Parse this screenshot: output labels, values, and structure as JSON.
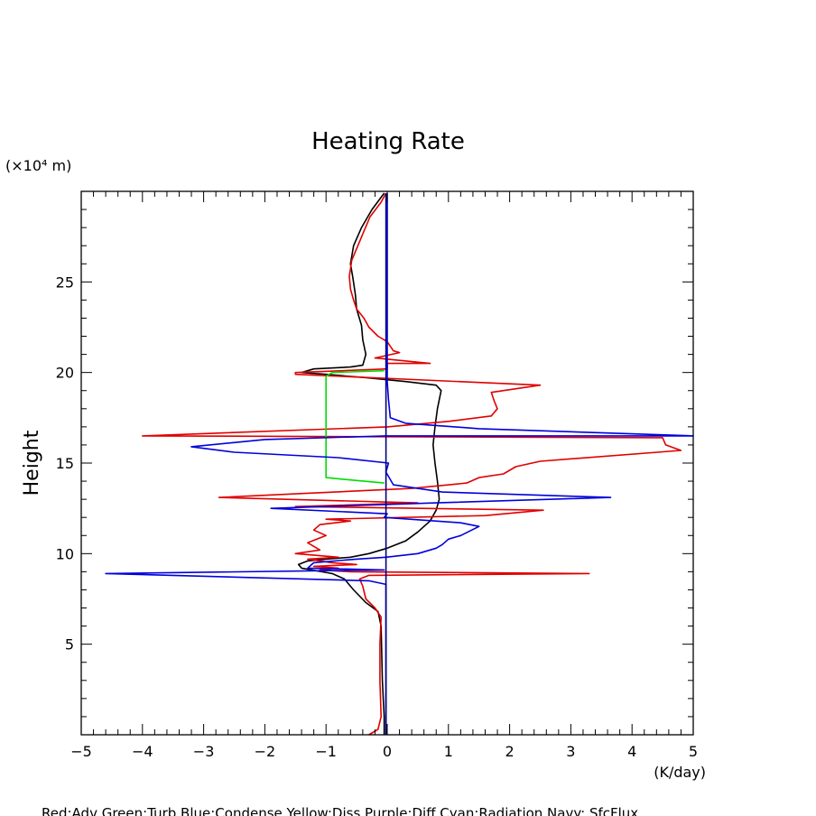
{
  "chart_data": {
    "type": "line",
    "title": "Heating Rate",
    "ylabel": "Height",
    "yunit": "(×10⁴ m)",
    "xunit": "(K/day)",
    "xlim": [
      -5,
      5
    ],
    "ylim": [
      0,
      30
    ],
    "xticks": [
      -5,
      -4,
      -3,
      -2,
      -1,
      0,
      1,
      2,
      3,
      4,
      5
    ],
    "yticks": [
      5,
      10,
      15,
      20,
      25
    ],
    "grid": false,
    "legend_text": "Red:Adv  Green:Turb  Blue:Condense  Yellow:Diss  Purple:Diff  Cyan:Radiation  Navy: SfcFlux",
    "series": [
      {
        "color": "#000000",
        "points": [
          [
            -0.05,
            0
          ],
          [
            -0.05,
            0.5
          ],
          [
            -0.05,
            1
          ],
          [
            -0.08,
            3
          ],
          [
            -0.1,
            6
          ],
          [
            -0.15,
            6.8
          ],
          [
            -0.35,
            7.3
          ],
          [
            -0.55,
            8
          ],
          [
            -0.7,
            8.6
          ],
          [
            -0.9,
            8.9
          ],
          [
            -1.4,
            9.2
          ],
          [
            -1.45,
            9.4
          ],
          [
            -1.3,
            9.6
          ],
          [
            -1.0,
            9.7
          ],
          [
            -0.6,
            9.8
          ],
          [
            -0.3,
            10.0
          ],
          [
            0.0,
            10.3
          ],
          [
            0.3,
            10.7
          ],
          [
            0.5,
            11.2
          ],
          [
            0.7,
            11.8
          ],
          [
            0.8,
            12.4
          ],
          [
            0.85,
            13.0
          ],
          [
            0.82,
            14.0
          ],
          [
            0.78,
            15.0
          ],
          [
            0.75,
            16.0
          ],
          [
            0.78,
            17.0
          ],
          [
            0.82,
            18.0
          ],
          [
            0.88,
            19.0
          ],
          [
            0.8,
            19.3
          ],
          [
            0.3,
            19.5
          ],
          [
            -0.3,
            19.7
          ],
          [
            -1.0,
            19.9
          ],
          [
            -1.4,
            20.0
          ],
          [
            -1.2,
            20.2
          ],
          [
            -0.6,
            20.3
          ],
          [
            -0.4,
            20.4
          ],
          [
            -0.35,
            21.0
          ],
          [
            -0.4,
            21.8
          ],
          [
            -0.42,
            22.6
          ],
          [
            -0.5,
            23.5
          ],
          [
            -0.52,
            24.3
          ],
          [
            -0.56,
            25.2
          ],
          [
            -0.6,
            26.0
          ],
          [
            -0.55,
            27.0
          ],
          [
            -0.42,
            28.0
          ],
          [
            -0.25,
            29.0
          ],
          [
            -0.05,
            29.9
          ]
        ]
      },
      {
        "color": "#e00000",
        "points": [
          [
            -0.3,
            0
          ],
          [
            -0.15,
            0.3
          ],
          [
            -0.1,
            1
          ],
          [
            -0.12,
            3
          ],
          [
            -0.12,
            5
          ],
          [
            -0.1,
            6.5
          ],
          [
            -0.2,
            7.0
          ],
          [
            -0.35,
            7.5
          ],
          [
            -0.4,
            8.2
          ],
          [
            -0.45,
            8.6
          ],
          [
            -0.3,
            8.8
          ],
          [
            3.3,
            8.9
          ],
          [
            -0.6,
            9.0
          ],
          [
            -1.1,
            9.1
          ],
          [
            -0.8,
            9.2
          ],
          [
            -1.2,
            9.3
          ],
          [
            -0.5,
            9.4
          ],
          [
            -0.9,
            9.5
          ],
          [
            -1.3,
            9.7
          ],
          [
            -0.8,
            9.8
          ],
          [
            -1.5,
            10.0
          ],
          [
            -1.1,
            10.2
          ],
          [
            -1.3,
            10.6
          ],
          [
            -1.0,
            11.0
          ],
          [
            -1.2,
            11.3
          ],
          [
            -1.1,
            11.6
          ],
          [
            -0.6,
            11.8
          ],
          [
            -1.0,
            11.9
          ],
          [
            1.6,
            12.1
          ],
          [
            2.55,
            12.4
          ],
          [
            -1.5,
            12.6
          ],
          [
            0.5,
            12.8
          ],
          [
            -2.75,
            13.1
          ],
          [
            -1.5,
            13.3
          ],
          [
            0.4,
            13.6
          ],
          [
            1.3,
            13.9
          ],
          [
            1.5,
            14.2
          ],
          [
            1.9,
            14.4
          ],
          [
            2.1,
            14.8
          ],
          [
            2.5,
            15.1
          ],
          [
            4.8,
            15.7
          ],
          [
            4.55,
            16.0
          ],
          [
            4.5,
            16.4
          ],
          [
            -4.0,
            16.5
          ],
          [
            0.0,
            17.0
          ],
          [
            1.0,
            17.3
          ],
          [
            1.7,
            17.6
          ],
          [
            1.8,
            18.0
          ],
          [
            1.75,
            18.4
          ],
          [
            1.7,
            18.9
          ],
          [
            2.5,
            19.3
          ],
          [
            -1.5,
            19.9
          ],
          [
            -1.5,
            20.0
          ],
          [
            0.0,
            20.2
          ],
          [
            0.0,
            20.5
          ],
          [
            0.7,
            20.5
          ],
          [
            -0.2,
            20.8
          ],
          [
            0.2,
            21.1
          ],
          [
            0.1,
            21.2
          ],
          [
            0.0,
            21.7
          ],
          [
            -0.15,
            22.0
          ],
          [
            -0.3,
            22.5
          ],
          [
            -0.38,
            23.0
          ],
          [
            -0.5,
            23.5
          ],
          [
            -0.55,
            24.0
          ],
          [
            -0.6,
            24.6
          ],
          [
            -0.62,
            25.3
          ],
          [
            -0.58,
            26.2
          ],
          [
            -0.48,
            27.0
          ],
          [
            -0.38,
            27.8
          ],
          [
            -0.28,
            28.6
          ],
          [
            -0.1,
            29.4
          ],
          [
            -0.02,
            29.9
          ]
        ]
      },
      {
        "color": "#00dd00",
        "points": [
          [
            -0.05,
            20.1
          ],
          [
            -0.9,
            20.0
          ],
          [
            -1.0,
            19.8
          ],
          [
            -1.0,
            14.2
          ],
          [
            -0.7,
            14.1
          ],
          [
            -0.05,
            13.9
          ]
        ]
      },
      {
        "color": "#0000dd",
        "points": [
          [
            -0.02,
            0
          ],
          [
            -0.02,
            8.3
          ],
          [
            -0.3,
            8.5
          ],
          [
            -4.6,
            8.9
          ],
          [
            -0.05,
            9.1
          ],
          [
            -1.3,
            9.2
          ],
          [
            -1.2,
            9.5
          ],
          [
            -0.5,
            9.7
          ],
          [
            -0.02,
            9.8
          ],
          [
            0.5,
            10.0
          ],
          [
            0.8,
            10.3
          ],
          [
            0.9,
            10.5
          ],
          [
            1.0,
            10.8
          ],
          [
            1.2,
            11.0
          ],
          [
            1.5,
            11.5
          ],
          [
            1.2,
            11.7
          ],
          [
            -0.05,
            12.0
          ],
          [
            0.0,
            12.2
          ],
          [
            -1.9,
            12.5
          ],
          [
            0.8,
            12.8
          ],
          [
            3.65,
            13.1
          ],
          [
            0.9,
            13.4
          ],
          [
            0.1,
            13.8
          ],
          [
            -0.02,
            14.5
          ],
          [
            0.02,
            15.0
          ],
          [
            -0.8,
            15.3
          ],
          [
            -2.5,
            15.6
          ],
          [
            -3.2,
            15.9
          ],
          [
            -2.0,
            16.3
          ],
          [
            -0.02,
            16.5
          ],
          [
            5.0,
            16.5
          ],
          [
            1.5,
            16.9
          ],
          [
            0.3,
            17.2
          ],
          [
            0.05,
            17.5
          ],
          [
            0.02,
            18.5
          ],
          [
            0.0,
            19.5
          ],
          [
            0.0,
            29.9
          ]
        ]
      },
      {
        "color": "#000080",
        "points": [
          [
            -0.02,
            0
          ],
          [
            -0.02,
            29.9
          ]
        ]
      }
    ]
  }
}
